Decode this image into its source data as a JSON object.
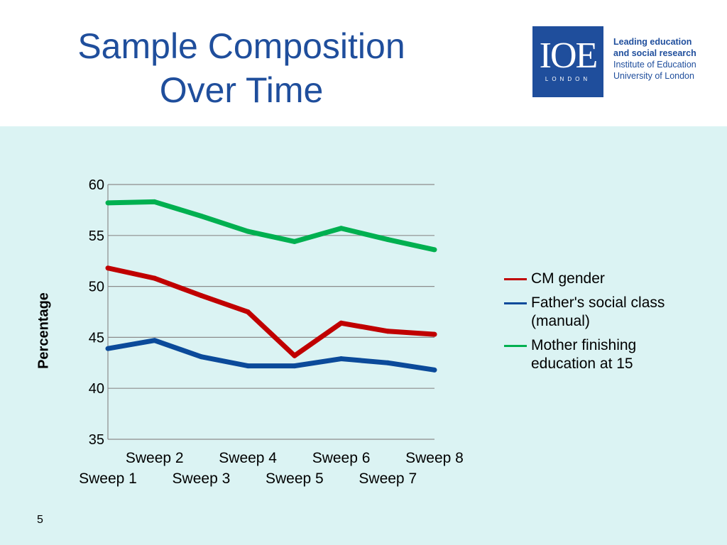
{
  "slide": {
    "title_line1": "Sample Composition",
    "title_line2": "Over Time",
    "page_number": "5"
  },
  "logo": {
    "mark": "IOE",
    "mark_sub": "LONDON",
    "line1": "Leading education",
    "line2": "and social research",
    "line3": "Institute of Education",
    "line4": "University of London"
  },
  "colors": {
    "title": "#1f4e9c",
    "background": "#dbf3f3",
    "cm_gender": "#c00000",
    "father_class": "#0b4a9a",
    "mother_edu": "#00b050"
  },
  "chart_data": {
    "type": "line",
    "ylabel": "Percentage",
    "ylim": [
      35,
      60
    ],
    "yticks": [
      35,
      40,
      45,
      50,
      55,
      60
    ],
    "grid": true,
    "legend_position": "right",
    "categories": [
      "Sweep 1",
      "Sweep 2",
      "Sweep 3",
      "Sweep 4",
      "Sweep 5",
      "Sweep 6",
      "Sweep 7",
      "Sweep 8"
    ],
    "series": [
      {
        "name": "CM gender",
        "color": "#c00000",
        "values": [
          51.8,
          50.8,
          49.1,
          47.5,
          43.2,
          46.4,
          45.6,
          45.3
        ]
      },
      {
        "name": "Father's social class (manual)",
        "color": "#0b4a9a",
        "values": [
          43.9,
          44.7,
          43.1,
          42.2,
          42.2,
          42.9,
          42.5,
          41.8
        ]
      },
      {
        "name": "Mother finishing education at 15",
        "color": "#00b050",
        "values": [
          58.2,
          58.3,
          56.9,
          55.4,
          54.4,
          55.7,
          54.6,
          53.6
        ]
      }
    ],
    "legend_lines": [
      [
        "CM gender"
      ],
      [
        "Father's social class",
        "(manual)"
      ],
      [
        "Mother finishing",
        "education at 15"
      ]
    ]
  }
}
